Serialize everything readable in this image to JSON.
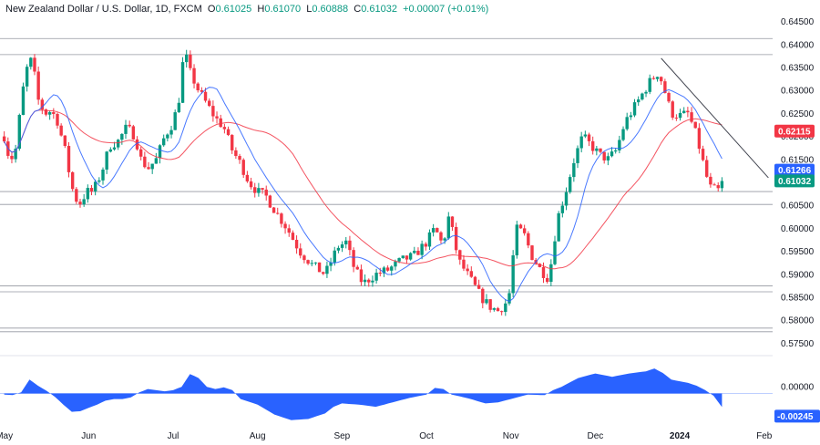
{
  "header": {
    "symbol": "New Zealand Dollar / U.S. Dollar, 1D, FXCM",
    "o_label": "O",
    "o": "0.61025",
    "h_label": "H",
    "h": "0.61070",
    "l_label": "L",
    "l": "0.60888",
    "c_label": "C",
    "c": "0.61032",
    "change": "+0.00007 (+0.01%)"
  },
  "chart_data": [
    {
      "type": "candlestick",
      "x_tick_labels": [
        "May",
        "Jun",
        "Jul",
        "Aug",
        "Sep",
        "Oct",
        "Nov",
        "Dec",
        "2024",
        "Feb"
      ],
      "x_tick_months": [
        0,
        1,
        2,
        3,
        4,
        5,
        6,
        7,
        8,
        9
      ],
      "x_range_months": [
        -0.05,
        9.1
      ],
      "y_tick_labels": [
        "0.64500",
        "0.64000",
        "0.63500",
        "0.63000",
        "0.62500",
        "0.62000",
        "0.61500",
        "0.61000",
        "0.60500",
        "0.60000",
        "0.59500",
        "0.59000",
        "0.58500",
        "0.58000",
        "0.57500"
      ],
      "ylim": [
        0.5735,
        0.6465
      ],
      "close_anchors": [
        [
          0.0,
          0.62
        ],
        [
          0.05,
          0.616
        ],
        [
          0.12,
          0.615
        ],
        [
          0.18,
          0.624
        ],
        [
          0.25,
          0.634
        ],
        [
          0.33,
          0.637
        ],
        [
          0.4,
          0.628
        ],
        [
          0.48,
          0.625
        ],
        [
          0.55,
          0.6255
        ],
        [
          0.62,
          0.624
        ],
        [
          0.72,
          0.617
        ],
        [
          0.8,
          0.609
        ],
        [
          0.88,
          0.605
        ],
        [
          0.98,
          0.608
        ],
        [
          1.05,
          0.608
        ],
        [
          1.15,
          0.612
        ],
        [
          1.25,
          0.618
        ],
        [
          1.35,
          0.619
        ],
        [
          1.45,
          0.622
        ],
        [
          1.55,
          0.62
        ],
        [
          1.62,
          0.615
        ],
        [
          1.7,
          0.613
        ],
        [
          1.8,
          0.615
        ],
        [
          1.9,
          0.62
        ],
        [
          2.0,
          0.623
        ],
        [
          2.08,
          0.629
        ],
        [
          2.13,
          0.639
        ],
        [
          2.2,
          0.634
        ],
        [
          2.3,
          0.63
        ],
        [
          2.4,
          0.627
        ],
        [
          2.5,
          0.624
        ],
        [
          2.6,
          0.622
        ],
        [
          2.7,
          0.617
        ],
        [
          2.8,
          0.614
        ],
        [
          2.9,
          0.61
        ],
        [
          3.0,
          0.608
        ],
        [
          3.1,
          0.607
        ],
        [
          3.2,
          0.604
        ],
        [
          3.35,
          0.6
        ],
        [
          3.5,
          0.595
        ],
        [
          3.65,
          0.592
        ],
        [
          3.8,
          0.59
        ],
        [
          3.95,
          0.596
        ],
        [
          4.05,
          0.597
        ],
        [
          4.15,
          0.591
        ],
        [
          4.25,
          0.588
        ],
        [
          4.4,
          0.59
        ],
        [
          4.55,
          0.591
        ],
        [
          4.7,
          0.593
        ],
        [
          4.85,
          0.594
        ],
        [
          5.0,
          0.597
        ],
        [
          5.1,
          0.6
        ],
        [
          5.2,
          0.596
        ],
        [
          5.25,
          0.603
        ],
        [
          5.3,
          0.6
        ],
        [
          5.38,
          0.593
        ],
        [
          5.45,
          0.591
        ],
        [
          5.55,
          0.588
        ],
        [
          5.65,
          0.585
        ],
        [
          5.75,
          0.583
        ],
        [
          5.85,
          0.582
        ],
        [
          5.95,
          0.584
        ],
        [
          6.0,
          0.587
        ],
        [
          6.05,
          0.6
        ],
        [
          6.15,
          0.599
        ],
        [
          6.25,
          0.594
        ],
        [
          6.35,
          0.591
        ],
        [
          6.4,
          0.59
        ],
        [
          6.45,
          0.589
        ],
        [
          6.55,
          0.602
        ],
        [
          6.65,
          0.608
        ],
        [
          6.75,
          0.615
        ],
        [
          6.85,
          0.62
        ],
        [
          6.95,
          0.618
        ],
        [
          7.05,
          0.616
        ],
        [
          7.15,
          0.615
        ],
        [
          7.25,
          0.617
        ],
        [
          7.35,
          0.623
        ],
        [
          7.45,
          0.626
        ],
        [
          7.55,
          0.629
        ],
        [
          7.65,
          0.632
        ],
        [
          7.75,
          0.634
        ],
        [
          7.82,
          0.63
        ],
        [
          7.9,
          0.625
        ],
        [
          8.0,
          0.6245
        ],
        [
          8.1,
          0.625
        ],
        [
          8.2,
          0.62
        ],
        [
          8.28,
          0.614
        ],
        [
          8.35,
          0.609
        ],
        [
          8.45,
          0.608
        ],
        [
          8.5,
          0.6103
        ]
      ],
      "indicators": {
        "sma_fast_period": 10,
        "sma_slow_period": 30,
        "fast_color": "#2962ff",
        "slow_color": "#f23645"
      },
      "horizontal_levels": [
        0.6413,
        0.6378,
        0.608,
        0.6052,
        0.5875,
        0.5862,
        0.5783,
        0.5775
      ],
      "trendline": {
        "from": [
          7.78,
          0.637
        ],
        "to": [
          9.05,
          0.611
        ]
      },
      "price_tags": [
        {
          "label": "0.62115",
          "value": 0.62115,
          "color": "#f23645"
        },
        {
          "label": "0.61266",
          "value": 0.61266,
          "color": "#2962ff"
        },
        {
          "label": "0.61032",
          "value": 0.61032,
          "color": "#089981"
        }
      ],
      "up_color": "#089981",
      "down_color": "#f23645"
    },
    {
      "type": "area",
      "name": "oscillator",
      "y_tick_labels": [
        "0.00000"
      ],
      "last_label": "-0.00245",
      "ylim": [
        -0.006,
        0.006
      ],
      "color": "#2962ff",
      "anchors": [
        [
          0.0,
          -0.0002
        ],
        [
          0.1,
          -0.0003
        ],
        [
          0.2,
          0.0002
        ],
        [
          0.3,
          0.0025
        ],
        [
          0.4,
          0.0014
        ],
        [
          0.5,
          0.0005
        ],
        [
          0.6,
          -0.0006
        ],
        [
          0.7,
          -0.002
        ],
        [
          0.8,
          -0.0033
        ],
        [
          0.9,
          -0.0032
        ],
        [
          1.0,
          -0.0026
        ],
        [
          1.1,
          -0.002
        ],
        [
          1.2,
          -0.0013
        ],
        [
          1.3,
          -0.001
        ],
        [
          1.4,
          -0.001
        ],
        [
          1.5,
          -0.0007
        ],
        [
          1.6,
          0.0002
        ],
        [
          1.7,
          0.0008
        ],
        [
          1.8,
          0.0006
        ],
        [
          1.9,
          0.0004
        ],
        [
          2.0,
          0.0006
        ],
        [
          2.1,
          0.0012
        ],
        [
          2.2,
          0.0035
        ],
        [
          2.3,
          0.0028
        ],
        [
          2.4,
          0.0012
        ],
        [
          2.5,
          0.0008
        ],
        [
          2.6,
          0.0011
        ],
        [
          2.7,
          0.0006
        ],
        [
          2.8,
          -0.001
        ],
        [
          3.0,
          -0.002
        ],
        [
          3.2,
          -0.0038
        ],
        [
          3.4,
          -0.0048
        ],
        [
          3.6,
          -0.0046
        ],
        [
          3.8,
          -0.0036
        ],
        [
          3.9,
          -0.0024
        ],
        [
          4.0,
          -0.0018
        ],
        [
          4.2,
          -0.002
        ],
        [
          4.4,
          -0.0024
        ],
        [
          4.6,
          -0.0016
        ],
        [
          4.8,
          -0.0008
        ],
        [
          5.0,
          -0.0002
        ],
        [
          5.1,
          0.001
        ],
        [
          5.2,
          0.0008
        ],
        [
          5.3,
          -0.0002
        ],
        [
          5.5,
          -0.0009
        ],
        [
          5.7,
          -0.0018
        ],
        [
          5.85,
          -0.0016
        ],
        [
          6.0,
          -0.001
        ],
        [
          6.1,
          -0.0006
        ],
        [
          6.2,
          -0.0002
        ],
        [
          6.4,
          -0.0003
        ],
        [
          6.5,
          0.0006
        ],
        [
          6.6,
          0.0012
        ],
        [
          6.8,
          0.0028
        ],
        [
          7.0,
          0.0036
        ],
        [
          7.2,
          0.003
        ],
        [
          7.4,
          0.0036
        ],
        [
          7.6,
          0.004
        ],
        [
          7.7,
          0.0045
        ],
        [
          7.8,
          0.0037
        ],
        [
          7.9,
          0.0025
        ],
        [
          8.0,
          0.0022
        ],
        [
          8.1,
          0.0019
        ],
        [
          8.2,
          0.0014
        ],
        [
          8.3,
          0.0006
        ],
        [
          8.4,
          -0.0004
        ],
        [
          8.5,
          -0.00245
        ]
      ]
    }
  ]
}
